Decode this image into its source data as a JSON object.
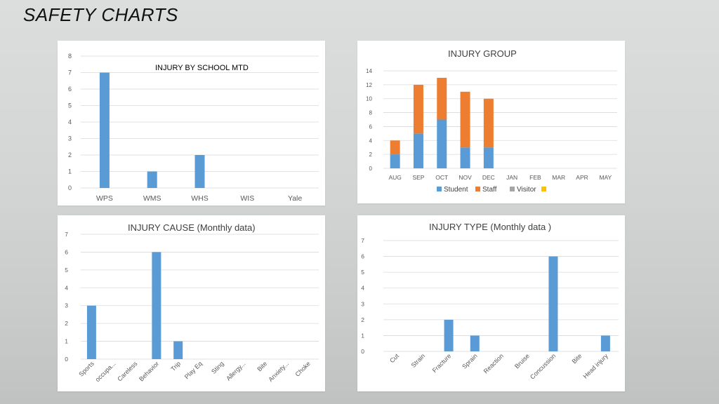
{
  "slide": {
    "title": "SAFETY CHARTS"
  },
  "colors": {
    "student": "#5b9bd5",
    "staff": "#ed7d31",
    "visitor": "#a5a5a5",
    "other": "#ffc000",
    "grid": "#d9d9d9"
  },
  "chart_data": [
    {
      "id": "school",
      "type": "bar",
      "title": "INJURY BY SCHOOL MTD",
      "categories": [
        "WPS",
        "WMS",
        "WHS",
        "WIS",
        "Yale"
      ],
      "values": [
        7,
        1,
        2,
        0,
        0
      ],
      "ylim": [
        0,
        8
      ],
      "yticks": [
        "0",
        "1",
        "2",
        "3",
        "4",
        "5",
        "6",
        "7",
        "8"
      ],
      "grid": true
    },
    {
      "id": "group",
      "type": "bar",
      "stacked": true,
      "title": "INJURY GROUP",
      "categories": [
        "AUG",
        "SEP",
        "OCT",
        "NOV",
        "DEC",
        "JAN",
        "FEB",
        "MAR",
        "APR",
        "MAY"
      ],
      "series": [
        {
          "name": "Student",
          "values": [
            2,
            5,
            7,
            3,
            3,
            0,
            0,
            0,
            0,
            0
          ]
        },
        {
          "name": "Staff",
          "values": [
            2,
            7,
            6,
            8,
            7,
            0,
            0,
            0,
            0,
            0
          ]
        },
        {
          "name": "Visitor",
          "values": [
            0,
            0,
            0,
            0,
            0,
            0,
            0,
            0,
            0,
            0
          ]
        },
        {
          "name": "",
          "values": [
            0,
            0,
            0,
            0,
            0,
            0,
            0,
            0,
            0,
            0
          ]
        }
      ],
      "ylim": [
        0,
        14
      ],
      "yticks": [
        "0",
        "2",
        "4",
        "6",
        "8",
        "10",
        "12",
        "14"
      ],
      "legend": "bottom",
      "grid": true
    },
    {
      "id": "cause",
      "type": "bar",
      "title": "INJURY CAUSE (Monthly data)",
      "categories": [
        "Sports",
        "occupa...",
        "Careless",
        "Behavior",
        "Trip",
        "Play Eq",
        "Sting",
        "Allergy...",
        "Bite",
        "Anxiety...",
        "Choke"
      ],
      "values": [
        3,
        0,
        0,
        6,
        1,
        0,
        0,
        0,
        0,
        0,
        0
      ],
      "ylim": [
        0,
        7
      ],
      "yticks": [
        "0",
        "1",
        "2",
        "3",
        "4",
        "5",
        "6",
        "7"
      ],
      "grid": true
    },
    {
      "id": "type",
      "type": "bar",
      "title": "INJURY TYPE (Monthly data )",
      "categories": [
        "Cut",
        "Strain",
        "Fracture",
        "Sprain",
        "Reaction",
        "Bruise",
        "Concussion",
        "Bite",
        "Head injury"
      ],
      "values": [
        0,
        0,
        2,
        1,
        0,
        0,
        6,
        0,
        1
      ],
      "ylim": [
        0,
        7
      ],
      "yticks": [
        "0",
        "1",
        "2",
        "3",
        "4",
        "5",
        "6",
        "7"
      ],
      "grid": true
    }
  ]
}
